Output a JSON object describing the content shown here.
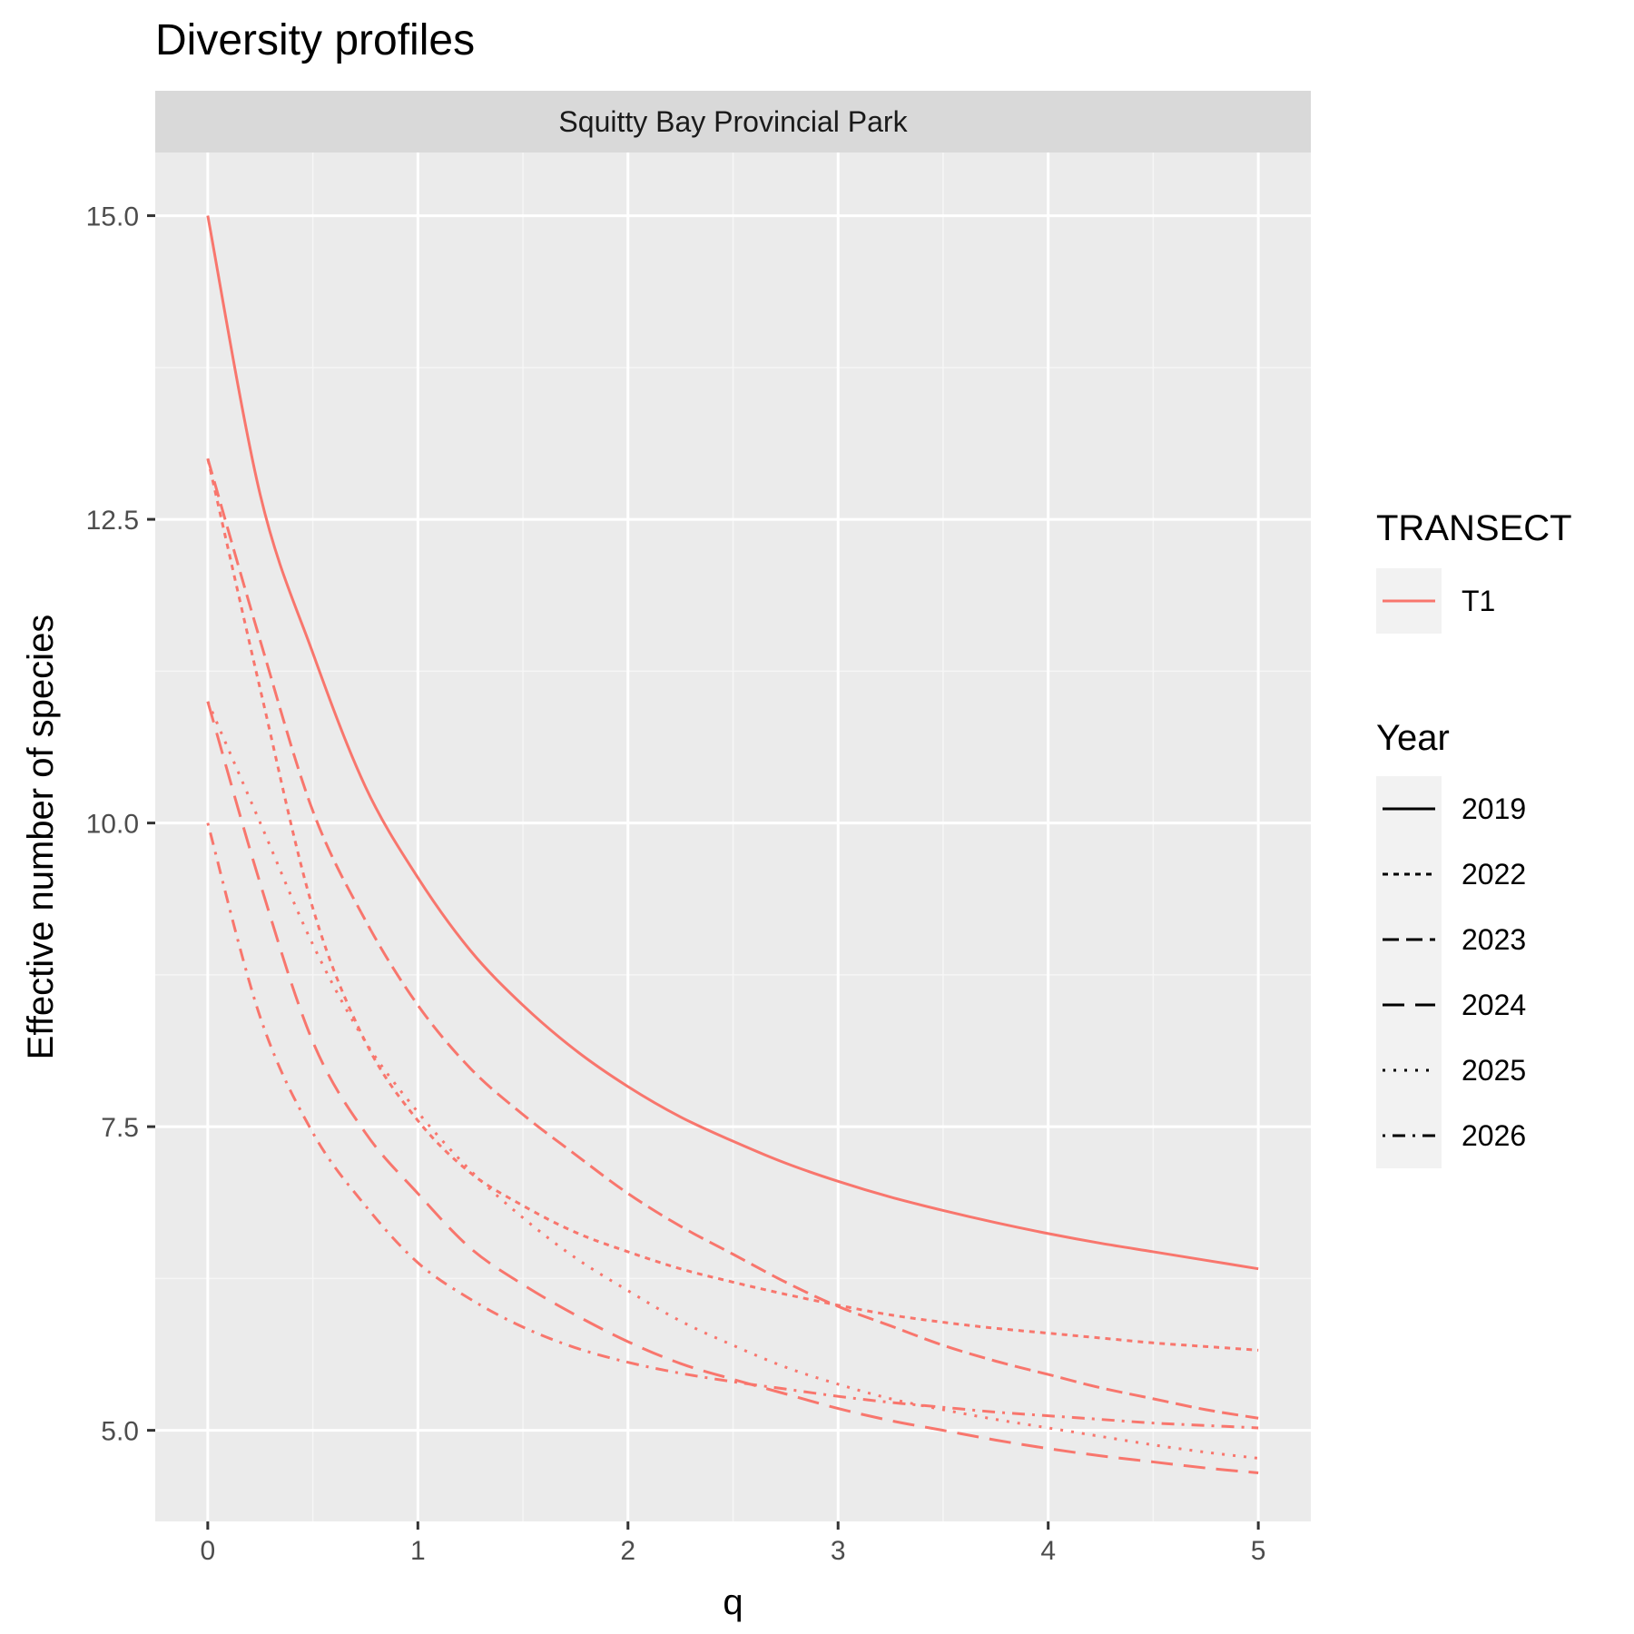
{
  "chart_data": {
    "type": "line",
    "title": "Diversity profiles",
    "facet_label": "Squitty Bay Provincial Park",
    "xlabel": "q",
    "ylabel": "Effective number of species",
    "xlim": [
      -0.25,
      5.25
    ],
    "ylim": [
      4.25,
      15.52
    ],
    "x_ticks": [
      0,
      1,
      2,
      3,
      4,
      5
    ],
    "x_tick_labels": [
      "0",
      "1",
      "2",
      "3",
      "4",
      "5"
    ],
    "y_ticks": [
      5.0,
      7.5,
      10.0,
      12.5,
      15.0
    ],
    "y_tick_labels": [
      "5.0",
      "7.5",
      "10.0",
      "12.5",
      "15.0"
    ],
    "grid": true,
    "legend_placement": "right",
    "line_color": "#F8766D",
    "x": [
      0,
      0.25,
      0.5,
      0.75,
      1,
      1.25,
      1.5,
      1.75,
      2,
      2.25,
      2.5,
      2.75,
      3,
      3.25,
      3.5,
      3.75,
      4,
      4.25,
      4.5,
      4.75,
      5
    ],
    "series": [
      {
        "name": "2019",
        "dash": "solid",
        "values": [
          15.0,
          12.7,
          11.4,
          10.3,
          9.55,
          8.95,
          8.5,
          8.13,
          7.83,
          7.58,
          7.38,
          7.2,
          7.05,
          6.92,
          6.81,
          6.71,
          6.62,
          6.54,
          6.47,
          6.4,
          6.33
        ]
      },
      {
        "name": "2022",
        "dash": "short-dash",
        "values": [
          13.0,
          11.1,
          9.3,
          8.2,
          7.55,
          7.12,
          6.85,
          6.63,
          6.47,
          6.33,
          6.22,
          6.12,
          6.03,
          5.95,
          5.89,
          5.84,
          5.8,
          5.76,
          5.72,
          5.69,
          5.66
        ]
      },
      {
        "name": "2023",
        "dash": "long-dash",
        "values": [
          13.0,
          11.5,
          10.1,
          9.2,
          8.5,
          7.98,
          7.6,
          7.27,
          6.95,
          6.68,
          6.45,
          6.22,
          6.02,
          5.86,
          5.7,
          5.57,
          5.46,
          5.35,
          5.26,
          5.17,
          5.1
        ]
      },
      {
        "name": "2024",
        "dash": "longer-dash",
        "values": [
          11.0,
          9.5,
          8.2,
          7.45,
          6.95,
          6.5,
          6.2,
          5.95,
          5.73,
          5.55,
          5.42,
          5.3,
          5.18,
          5.08,
          5.0,
          4.92,
          4.85,
          4.79,
          4.74,
          4.69,
          4.65
        ]
      },
      {
        "name": "2025",
        "dash": "dotted",
        "values": [
          11.0,
          10.0,
          9.0,
          8.2,
          7.62,
          7.14,
          6.75,
          6.42,
          6.15,
          5.9,
          5.7,
          5.52,
          5.38,
          5.26,
          5.17,
          5.09,
          5.02,
          4.95,
          4.88,
          4.82,
          4.77
        ]
      },
      {
        "name": "2026",
        "dash": "dot-dash",
        "values": [
          10.0,
          8.4,
          7.45,
          6.85,
          6.38,
          6.08,
          5.85,
          5.68,
          5.56,
          5.47,
          5.4,
          5.34,
          5.28,
          5.23,
          5.19,
          5.15,
          5.12,
          5.09,
          5.06,
          5.04,
          5.02
        ]
      }
    ]
  },
  "legend": {
    "color_title": "TRANSECT",
    "color_items": [
      {
        "label": "T1",
        "color": "#F8766D"
      }
    ],
    "linetype_title": "Year",
    "linetype_items": [
      "2019",
      "2022",
      "2023",
      "2024",
      "2025",
      "2026"
    ]
  },
  "colors": {
    "panel_background": "#EBEBEB",
    "grid_major": "#FFFFFF",
    "grid_minor": "#F6F6F6",
    "strip_background": "#D9D9D9",
    "axis_text": "#4D4D4D",
    "text": "#000000",
    "legend_key_background": "#F2F2F2"
  }
}
